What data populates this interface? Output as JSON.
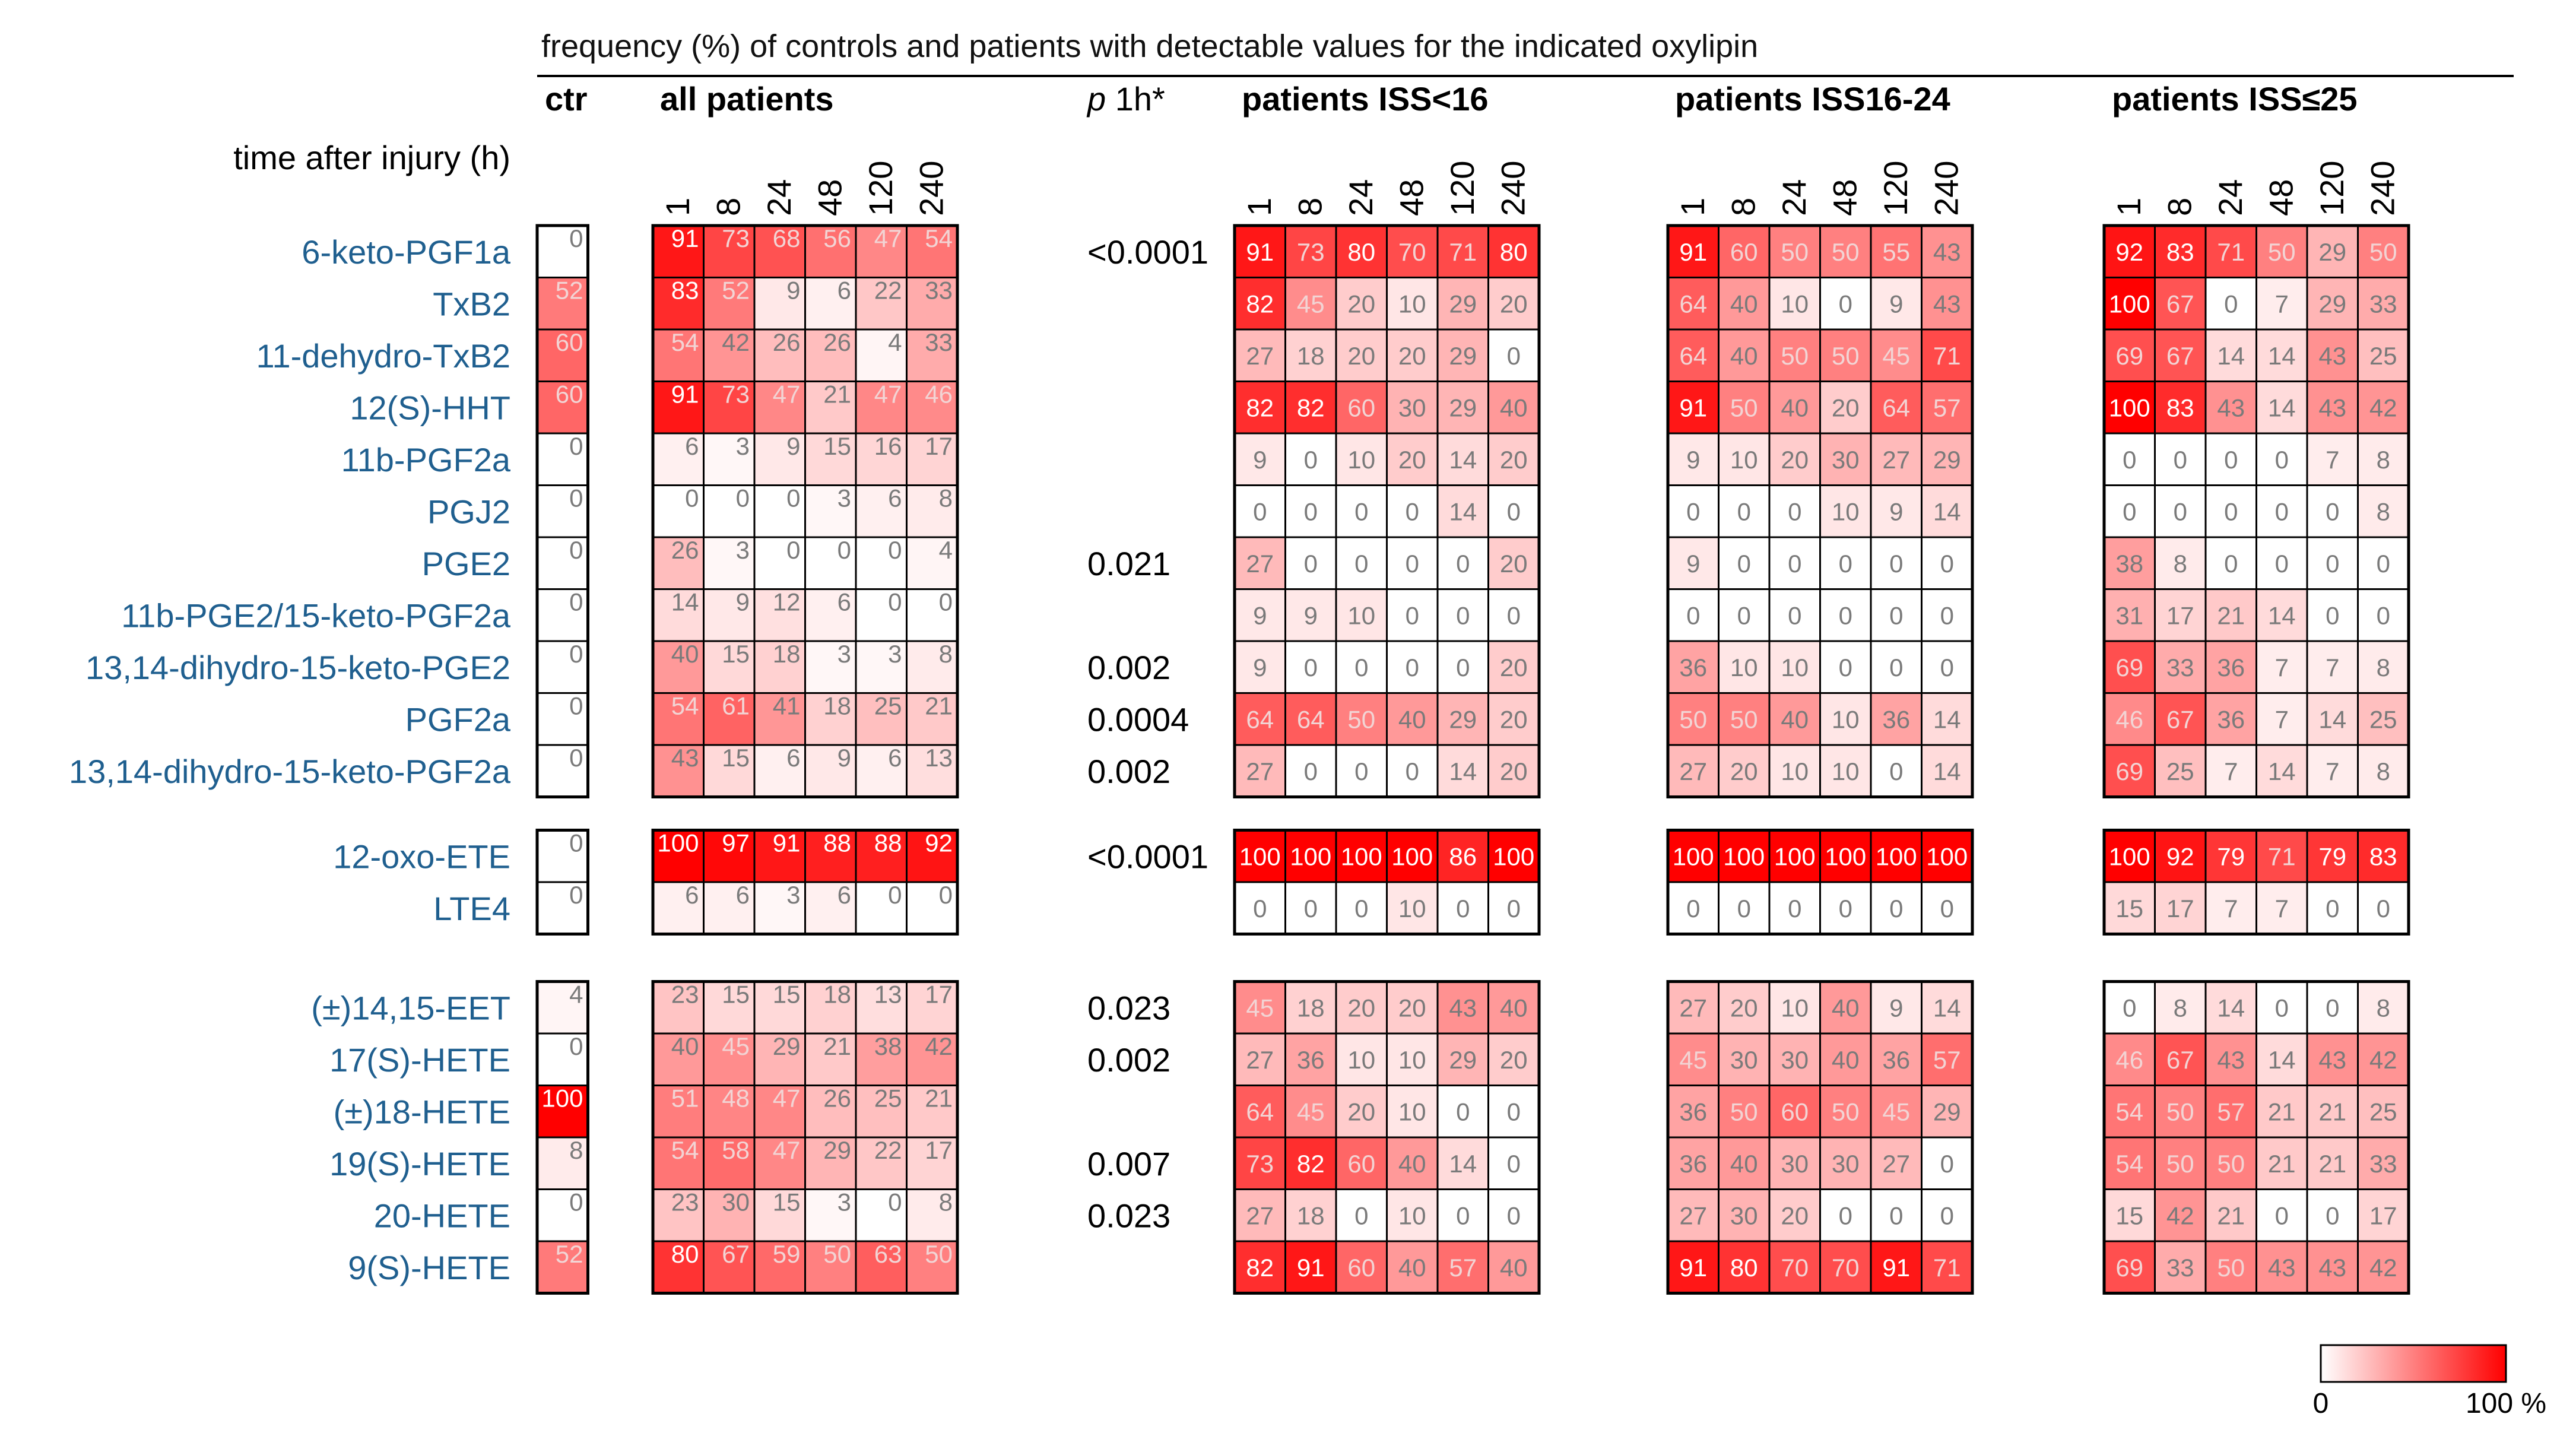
{
  "title": "frequency (%) of controls and patients with detectable values for the indicated oxylipin",
  "time_label": "time after injury (h)",
  "p_header": {
    "italic": "p",
    "rest": " 1h*"
  },
  "legend": {
    "min_label": "0",
    "max_label": "100 %",
    "low_color": "#ffffff",
    "high_color": "#ff0000"
  },
  "chart_data": {
    "type": "heatmap",
    "title": "frequency (%) of controls and patients with detectable values for the indicated oxylipin",
    "xlabel": "time after injury (h)",
    "value_range": [
      0,
      100
    ],
    "colorscale": [
      "#ffffff",
      "#ff0000"
    ],
    "time_points": [
      "1",
      "8",
      "24",
      "48",
      "120",
      "240"
    ],
    "groups": [
      {
        "label": "ctr",
        "times": [
          ""
        ]
      },
      {
        "label": "all  patients",
        "times": [
          "1",
          "8",
          "24",
          "48",
          "120",
          "240"
        ]
      },
      {
        "label": "patients ISS<16",
        "times": [
          "1",
          "8",
          "24",
          "48",
          "120",
          "240"
        ]
      },
      {
        "label": "patients ISS16-24",
        "times": [
          "1",
          "8",
          "24",
          "48",
          "120",
          "240"
        ]
      },
      {
        "label": "patients ISS≤25",
        "times": [
          "1",
          "8",
          "24",
          "48",
          "120",
          "240"
        ]
      }
    ],
    "row_blocks": [
      {
        "rows": [
          {
            "name": "6-keto-PGF1a",
            "p": "<0.0001",
            "ctr": 0,
            "all": [
              91,
              73,
              68,
              56,
              47,
              54
            ],
            "iss_lt16": [
              91,
              73,
              80,
              70,
              71,
              80
            ],
            "iss16_24": [
              91,
              60,
              50,
              50,
              55,
              43
            ],
            "iss_ge25": [
              92,
              83,
              71,
              50,
              29,
              50
            ]
          },
          {
            "name": "TxB2",
            "p": "",
            "ctr": 52,
            "all": [
              83,
              52,
              9,
              6,
              22,
              33
            ],
            "iss_lt16": [
              82,
              45,
              20,
              10,
              29,
              20
            ],
            "iss16_24": [
              64,
              40,
              10,
              0,
              9,
              43
            ],
            "iss_ge25": [
              100,
              67,
              0,
              7,
              29,
              33
            ]
          },
          {
            "name": "11-dehydro-TxB2",
            "p": "",
            "ctr": 60,
            "all": [
              54,
              42,
              26,
              26,
              4,
              33
            ],
            "iss_lt16": [
              27,
              18,
              20,
              20,
              29,
              0
            ],
            "iss16_24": [
              64,
              40,
              50,
              50,
              45,
              71
            ],
            "iss_ge25": [
              69,
              67,
              14,
              14,
              43,
              25
            ]
          },
          {
            "name": "12(S)-HHT",
            "p": "",
            "ctr": 60,
            "all": [
              91,
              73,
              47,
              21,
              47,
              46
            ],
            "iss_lt16": [
              82,
              82,
              60,
              30,
              29,
              40
            ],
            "iss16_24": [
              91,
              50,
              40,
              20,
              64,
              57
            ],
            "iss_ge25": [
              100,
              83,
              43,
              14,
              43,
              42
            ]
          },
          {
            "name": "11b-PGF2a",
            "p": "",
            "ctr": 0,
            "all": [
              6,
              3,
              9,
              15,
              16,
              17
            ],
            "iss_lt16": [
              9,
              0,
              10,
              20,
              14,
              20
            ],
            "iss16_24": [
              9,
              10,
              20,
              30,
              27,
              29
            ],
            "iss_ge25": [
              0,
              0,
              0,
              0,
              7,
              8
            ]
          },
          {
            "name": "PGJ2",
            "p": "",
            "ctr": 0,
            "all": [
              0,
              0,
              0,
              3,
              6,
              8
            ],
            "iss_lt16": [
              0,
              0,
              0,
              0,
              14,
              0
            ],
            "iss16_24": [
              0,
              0,
              0,
              10,
              9,
              14
            ],
            "iss_ge25": [
              0,
              0,
              0,
              0,
              0,
              8
            ]
          },
          {
            "name": "PGE2",
            "p": "0.021",
            "ctr": 0,
            "all": [
              26,
              3,
              0,
              0,
              0,
              4
            ],
            "iss_lt16": [
              27,
              0,
              0,
              0,
              0,
              20
            ],
            "iss16_24": [
              9,
              0,
              0,
              0,
              0,
              0
            ],
            "iss_ge25": [
              38,
              8,
              0,
              0,
              0,
              0
            ]
          },
          {
            "name": "11b-PGE2/15-keto-PGF2a",
            "p": "",
            "ctr": 0,
            "all": [
              14,
              9,
              12,
              6,
              0,
              0
            ],
            "iss_lt16": [
              9,
              9,
              10,
              0,
              0,
              0
            ],
            "iss16_24": [
              0,
              0,
              0,
              0,
              0,
              0
            ],
            "iss_ge25": [
              31,
              17,
              21,
              14,
              0,
              0
            ]
          },
          {
            "name": "13,14-dihydro-15-keto-PGE2",
            "p": "0.002",
            "ctr": 0,
            "all": [
              40,
              15,
              18,
              3,
              3,
              8
            ],
            "iss_lt16": [
              9,
              0,
              0,
              0,
              0,
              20
            ],
            "iss16_24": [
              36,
              10,
              10,
              0,
              0,
              0
            ],
            "iss_ge25": [
              69,
              33,
              36,
              7,
              7,
              8
            ]
          },
          {
            "name": "PGF2a",
            "p": "0.0004",
            "ctr": 0,
            "all": [
              54,
              61,
              41,
              18,
              25,
              21
            ],
            "iss_lt16": [
              64,
              64,
              50,
              40,
              29,
              20
            ],
            "iss16_24": [
              50,
              50,
              40,
              10,
              36,
              14
            ],
            "iss_ge25": [
              46,
              67,
              36,
              7,
              14,
              25
            ]
          },
          {
            "name": "13,14-dihydro-15-keto-PGF2a",
            "p": "0.002",
            "ctr": 0,
            "all": [
              43,
              15,
              6,
              9,
              6,
              13
            ],
            "iss_lt16": [
              27,
              0,
              0,
              0,
              14,
              20
            ],
            "iss16_24": [
              27,
              20,
              10,
              10,
              0,
              14
            ],
            "iss_ge25": [
              69,
              25,
              7,
              14,
              7,
              8
            ]
          }
        ]
      },
      {
        "rows": [
          {
            "name": "12-oxo-ETE",
            "p": "<0.0001",
            "ctr": 0,
            "all": [
              100,
              97,
              91,
              88,
              88,
              92
            ],
            "iss_lt16": [
              100,
              100,
              100,
              100,
              86,
              100
            ],
            "iss16_24": [
              100,
              100,
              100,
              100,
              100,
              100
            ],
            "iss_ge25": [
              100,
              92,
              79,
              71,
              79,
              83
            ]
          },
          {
            "name": "LTE4",
            "p": "",
            "ctr": 0,
            "all": [
              6,
              6,
              3,
              6,
              0,
              0
            ],
            "iss_lt16": [
              0,
              0,
              0,
              10,
              0,
              0
            ],
            "iss16_24": [
              0,
              0,
              0,
              0,
              0,
              0
            ],
            "iss_ge25": [
              15,
              17,
              7,
              7,
              0,
              0
            ]
          }
        ]
      },
      {
        "rows": [
          {
            "name": "(±)14,15-EET",
            "p": "0.023",
            "ctr": 4,
            "all": [
              23,
              15,
              15,
              18,
              13,
              17
            ],
            "iss_lt16": [
              45,
              18,
              20,
              20,
              43,
              40
            ],
            "iss16_24": [
              27,
              20,
              10,
              40,
              9,
              14
            ],
            "iss_ge25": [
              0,
              8,
              14,
              0,
              0,
              8
            ]
          },
          {
            "name": "17(S)-HETE",
            "p": "0.002",
            "ctr": 0,
            "all": [
              40,
              45,
              29,
              21,
              38,
              42
            ],
            "iss_lt16": [
              27,
              36,
              10,
              10,
              29,
              20
            ],
            "iss16_24": [
              45,
              30,
              30,
              40,
              36,
              57
            ],
            "iss_ge25": [
              46,
              67,
              43,
              14,
              43,
              42
            ]
          },
          {
            "name": "(±)18-HETE",
            "p": "",
            "ctr": 100,
            "all": [
              51,
              48,
              47,
              26,
              25,
              21
            ],
            "iss_lt16": [
              64,
              45,
              20,
              10,
              0,
              0
            ],
            "iss16_24": [
              36,
              50,
              60,
              50,
              45,
              29
            ],
            "iss_ge25": [
              54,
              50,
              57,
              21,
              21,
              25
            ]
          },
          {
            "name": "19(S)-HETE",
            "p": "0.007",
            "ctr": 8,
            "all": [
              54,
              58,
              47,
              29,
              22,
              17
            ],
            "iss_lt16": [
              73,
              82,
              60,
              40,
              14,
              0
            ],
            "iss16_24": [
              36,
              40,
              30,
              30,
              27,
              0
            ],
            "iss_ge25": [
              54,
              50,
              50,
              21,
              21,
              33
            ]
          },
          {
            "name": "20-HETE",
            "p": "0.023",
            "ctr": 0,
            "all": [
              23,
              30,
              15,
              3,
              0,
              8
            ],
            "iss_lt16": [
              27,
              18,
              0,
              10,
              0,
              0
            ],
            "iss16_24": [
              27,
              30,
              20,
              0,
              0,
              0
            ],
            "iss_ge25": [
              15,
              42,
              21,
              0,
              0,
              17
            ]
          },
          {
            "name": "9(S)-HETE",
            "p": "",
            "ctr": 52,
            "all": [
              80,
              67,
              59,
              50,
              63,
              50
            ],
            "iss_lt16": [
              82,
              91,
              60,
              40,
              57,
              40
            ],
            "iss16_24": [
              91,
              80,
              70,
              70,
              91,
              71
            ],
            "iss_ge25": [
              69,
              33,
              50,
              43,
              43,
              42
            ]
          }
        ]
      }
    ]
  }
}
